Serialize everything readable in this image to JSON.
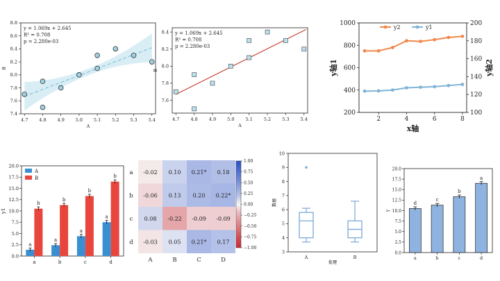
{
  "chart_data": [
    {
      "id": "reg1",
      "type": "scatter",
      "xlabel": "A",
      "ylabel": "B",
      "xlim": [
        4.68,
        5.42
      ],
      "ylim": [
        7.4,
        8.8
      ],
      "xticks": [
        "4.7",
        "4.8",
        "4.9",
        "5.0",
        "5.1",
        "5.2",
        "5.3",
        "5.4"
      ],
      "yticks": [
        "7.4",
        "7.6",
        "7.8",
        "8.0",
        "8.2",
        "8.4",
        "8.6",
        "8.8"
      ],
      "x": [
        4.7,
        4.8,
        4.8,
        4.9,
        5.0,
        5.1,
        5.1,
        5.2,
        5.3,
        5.4
      ],
      "y": [
        7.7,
        7.5,
        7.9,
        7.8,
        8.0,
        8.3,
        8.1,
        8.4,
        8.3,
        8.2
      ],
      "annotation": [
        "y = 1.069x + 2.645",
        "R² = 0.708",
        "p = 2.280e-03"
      ],
      "fit": {
        "slope": 1.069,
        "intercept": 2.645
      },
      "colors": {
        "marker": "#9fd1e0",
        "line": "#7fbfd6",
        "band": "#cfe8f2"
      }
    },
    {
      "id": "reg2",
      "type": "scatter",
      "xlabel": "A",
      "ylabel": "B",
      "xlim": [
        4.68,
        5.42
      ],
      "ylim": [
        7.45,
        8.45
      ],
      "xticks": [
        "4.7",
        "4.8",
        "4.9",
        "5.0",
        "5.1",
        "5.2",
        "5.3",
        "5.4"
      ],
      "yticks": [
        "7.6",
        "7.8",
        "8.0",
        "8.2",
        "8.4"
      ],
      "x": [
        4.7,
        4.8,
        4.8,
        4.9,
        5.0,
        5.1,
        5.1,
        5.2,
        5.3,
        5.4
      ],
      "y": [
        7.7,
        7.5,
        7.9,
        7.8,
        8.0,
        8.3,
        8.1,
        8.4,
        8.3,
        8.2
      ],
      "annotation": [
        "y = 1.069x + 2.645",
        "R² = 0.708",
        "p = 2.280e-03"
      ],
      "fit": {
        "slope": 1.069,
        "intercept": 2.645
      },
      "colors": {
        "marker": "#b7e3f0",
        "line": "#c0392b"
      }
    },
    {
      "id": "dual",
      "type": "line",
      "xlabel": "x轴",
      "ylabel_left": "y轴1",
      "ylabel_right": "y轴2",
      "x": [
        1,
        2,
        3,
        4,
        5,
        6,
        7,
        8
      ],
      "xlim": [
        0.6,
        8.3
      ],
      "xticks": [
        "2",
        "4",
        "6",
        "8"
      ],
      "ylim_left": [
        200,
        1000
      ],
      "yticks_left": [
        "200",
        "400",
        "600",
        "800",
        "1000"
      ],
      "ylim_right": [
        100,
        200
      ],
      "yticks_right": [
        "100",
        "120",
        "140",
        "160",
        "180",
        "200"
      ],
      "series": [
        {
          "name": "y2",
          "axis": "left",
          "color": "#f0874a",
          "values": [
            750,
            750,
            780,
            840,
            835,
            850,
            870,
            880
          ]
        },
        {
          "name": "y1",
          "axis": "left",
          "color": "#7fb3d5",
          "values": [
            390,
            392,
            400,
            420,
            425,
            430,
            440,
            450
          ]
        }
      ]
    },
    {
      "id": "bars",
      "type": "bar",
      "ylabel": "y1",
      "categories": [
        "a",
        "b",
        "c",
        "d"
      ],
      "ylim": [
        0,
        20
      ],
      "yticks": [
        "0.0",
        "2.5",
        "5.0",
        "7.5",
        "10.0",
        "12.5",
        "15.0",
        "17.5",
        "20.0"
      ],
      "series": [
        {
          "name": "A",
          "color": "#3a8fd1",
          "values": [
            1.4,
            2.4,
            4.4,
            7.5
          ],
          "err": [
            0.35,
            0.35,
            0.4,
            0.4
          ],
          "letters": [
            "a",
            "a",
            "a",
            "a"
          ]
        },
        {
          "name": "B",
          "color": "#e8463d",
          "values": [
            10.5,
            11.3,
            13.3,
            16.5
          ],
          "err": [
            0.4,
            0.4,
            0.4,
            0.4
          ],
          "letters": [
            "b",
            "b",
            "b",
            "b"
          ]
        }
      ]
    },
    {
      "id": "heat",
      "type": "heatmap",
      "rows": [
        "a",
        "b",
        "c",
        "d"
      ],
      "cols": [
        "A",
        "B",
        "C",
        "D"
      ],
      "values": [
        [
          -0.02,
          0.1,
          0.21,
          0.18
        ],
        [
          -0.06,
          0.13,
          0.2,
          0.22
        ],
        [
          0.08,
          -0.22,
          -0.09,
          -0.09
        ],
        [
          -0.03,
          0.05,
          0.21,
          0.17
        ]
      ],
      "labels": [
        [
          "-0.02",
          "0.10",
          "0.21*",
          "0.18"
        ],
        [
          "-0.06",
          "0.13",
          "0.20",
          "0.22*"
        ],
        [
          "0.08",
          "-0.22",
          "-0.09",
          "-0.09"
        ],
        [
          "-0.03",
          "0.05",
          "0.21*",
          "0.17"
        ]
      ],
      "colorbar_ticks": [
        "1.00",
        "0.75",
        "0.50",
        "0.25",
        "0.00",
        "−0.25",
        "−0.50",
        "−0.75",
        "−1.00"
      ],
      "vmin": -1,
      "vmax": 1
    },
    {
      "id": "box",
      "type": "box",
      "xlabel": "处理",
      "ylabel": "数据",
      "categories": [
        "A",
        "B"
      ],
      "ylim": [
        3,
        10
      ],
      "yticks": [
        "3",
        "4",
        "5",
        "6",
        "7",
        "8",
        "9",
        "10"
      ],
      "boxes": [
        {
          "min": 3.7,
          "q1": 4.0,
          "median": 5.2,
          "q3": 5.8,
          "max": 6.1,
          "outliers": [
            9.0
          ]
        },
        {
          "min": 3.7,
          "q1": 4.0,
          "median": 4.6,
          "q3": 5.2,
          "max": 6.6,
          "outliers": []
        }
      ],
      "color": "#7aa8d8"
    },
    {
      "id": "bars2",
      "type": "bar",
      "ylabel": "y",
      "categories": [
        "a",
        "b",
        "c",
        "d"
      ],
      "ylim": [
        0,
        20
      ],
      "yticks": [
        "0.0",
        "2.5",
        "5.0",
        "7.5",
        "10.0",
        "12.5",
        "15.0",
        "17.5",
        "20.0"
      ],
      "values": [
        10.5,
        11.3,
        13.3,
        16.5
      ],
      "err": [
        0.4,
        0.4,
        0.4,
        0.4
      ],
      "letters": [
        "d",
        "c",
        "b",
        "a"
      ],
      "color": "#8fb3e0"
    }
  ]
}
